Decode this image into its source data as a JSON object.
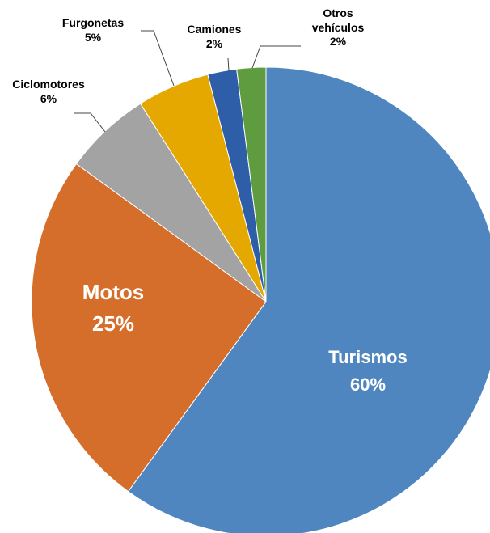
{
  "chart_data": {
    "type": "pie",
    "categories": [
      "Turismos",
      "Motos",
      "Ciclomotores",
      "Furgonetas",
      "Camiones",
      "Otros vehículos"
    ],
    "values": [
      60,
      25,
      6,
      5,
      2,
      2
    ],
    "value_labels": [
      "60%",
      "25%",
      "6%",
      "5%",
      "2%",
      "2%"
    ],
    "colors": [
      "#4f86bf",
      "#d56d2b",
      "#a3a3a3",
      "#e5a800",
      "#2f5ea8",
      "#5e9c3f"
    ]
  }
}
